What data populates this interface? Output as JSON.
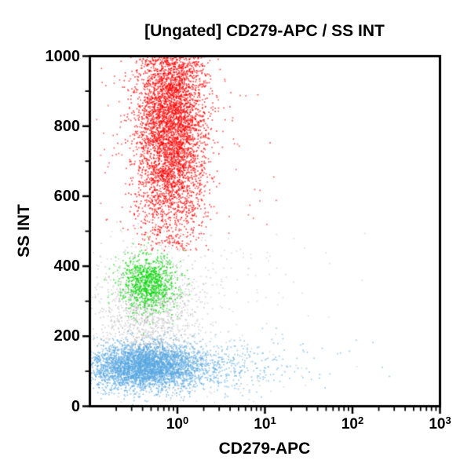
{
  "title": "[Ungated] CD279-APC / SS INT",
  "chart_data": {
    "type": "scatter",
    "title": "[Ungated] CD279-APC / SS INT",
    "xlabel": "CD279-APC",
    "ylabel": "SS INT",
    "x_scale": "log",
    "x_range_log10": [
      -1,
      3
    ],
    "y_range": [
      0,
      1000
    ],
    "grid": false,
    "legend": false,
    "axis_color": "#000000",
    "background_color": "#FFFFFF",
    "x_ticks": [
      {
        "base": "10",
        "exp": "0",
        "log10": 0
      },
      {
        "base": "10",
        "exp": "1",
        "log10": 1
      },
      {
        "base": "10",
        "exp": "2",
        "log10": 2
      },
      {
        "base": "10",
        "exp": "3",
        "log10": 3
      }
    ],
    "x_minor_ticks": "log-decades 2-9 per decade from 1e-1 to 1e3",
    "y_ticks": [
      {
        "label": "0",
        "value": 0
      },
      {
        "label": "200",
        "value": 200
      },
      {
        "label": "400",
        "value": 400
      },
      {
        "label": "600",
        "value": 600
      },
      {
        "label": "800",
        "value": 800
      },
      {
        "label": "1000",
        "value": 1000
      }
    ],
    "y_minor_tick_values": [
      100,
      300,
      500,
      700,
      900
    ],
    "populations": [
      {
        "name": "debris-monocytes-gray-cluster",
        "color": "#B3B3B3",
        "alpha": 0.55,
        "n": 1250,
        "x_log_mean": -0.32,
        "x_log_sd": 0.28,
        "y_mean": 270,
        "y_sd": 90
      },
      {
        "name": "background-gray-scatter",
        "color": "#BDBDBD",
        "alpha": 0.5,
        "n": 420,
        "x_log_mean": -0.1,
        "x_log_sd": 0.75,
        "x_clip_min_log": -1,
        "y_dist": "uniform",
        "y_min": 10,
        "y_max": 500
      },
      {
        "name": "lymphocytes-blue-main",
        "color": "#58A8E2",
        "alpha": 0.65,
        "n": 3300,
        "x_log_mean": -0.38,
        "x_log_sd": 0.32,
        "x_clip_min_log": -1,
        "y_mean": 112,
        "y_sd": 33
      },
      {
        "name": "lymphocytes-blue-tail",
        "color": "#58A8E2",
        "alpha": 0.6,
        "n": 650,
        "x_log_mean": 0.15,
        "x_log_sd": 0.5,
        "y_mean": 110,
        "y_sd": 36
      },
      {
        "name": "lymphocytes-blue-sparse",
        "color": "#58A8E2",
        "alpha": 0.6,
        "n": 50,
        "x_log_mean": 1.2,
        "x_log_sd": 0.55,
        "y_mean": 115,
        "y_sd": 45
      },
      {
        "name": "eosinophils-green",
        "color": "#00D800",
        "alpha": 0.7,
        "n": 850,
        "x_log_mean": -0.33,
        "x_log_sd": 0.16,
        "y_mean": 352,
        "y_sd": 40
      },
      {
        "name": "granulocytes-red-halo",
        "color": "#FF0000",
        "alpha": 0.6,
        "n": 320,
        "x_log_mean": -0.12,
        "x_log_sd": 0.45,
        "x_clip_min_log": -1,
        "y_mean": 760,
        "y_sd": 210,
        "y_reject_below": 445,
        "y_clip_max": 1000
      },
      {
        "name": "granulocytes-red-main",
        "color": "#FF0000",
        "alpha": 0.7,
        "n": 5000,
        "x_log_mean": -0.07,
        "x_log_sd": 0.2,
        "y_mean": 815,
        "y_sd": 180,
        "y_reject_below": 445,
        "y_clip_max": 1000
      },
      {
        "name": "red-outliers",
        "color": "#FF0000",
        "alpha": 0.7,
        "n": 5,
        "x_log_mean": 0.9,
        "x_log_sd": 0.4,
        "y_mean": 920,
        "y_sd": 120,
        "y_clip_max": 1000
      }
    ]
  }
}
